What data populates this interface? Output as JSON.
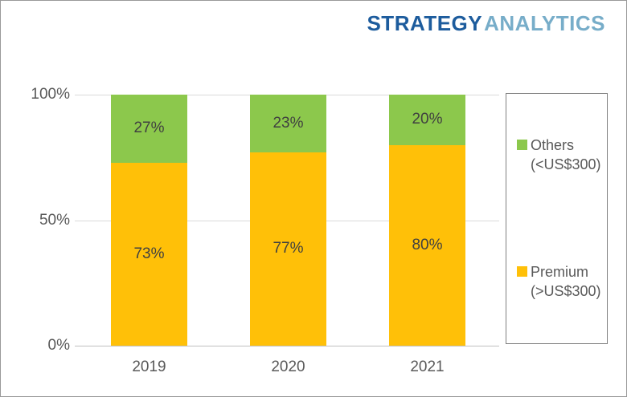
{
  "brand": {
    "word1": "STRATEGY",
    "word2": "ANALYTICS",
    "word1_color": "#1d5c9d",
    "word2_color": "#77adc9"
  },
  "chart_data": {
    "type": "bar",
    "stacked": true,
    "orientation": "vertical",
    "title": "",
    "xlabel": "",
    "ylabel": "",
    "categories": [
      "2019",
      "2020",
      "2021"
    ],
    "series": [
      {
        "name": "Premium (>US$300)",
        "color": "#ffc008",
        "values": [
          73,
          77,
          80
        ],
        "labels": [
          "73%",
          "77%",
          "80%"
        ]
      },
      {
        "name": "Others (<US$300)",
        "color": "#8cc84c",
        "values": [
          27,
          23,
          20
        ],
        "labels": [
          "27%",
          "23%",
          "20%"
        ]
      }
    ],
    "stack_order": "Premium bottom, Others top",
    "ylim": [
      0,
      100
    ],
    "yticks": [
      {
        "label": "100%",
        "value": 100
      },
      {
        "label": "50%",
        "value": 50
      },
      {
        "label": "0%",
        "value": 0
      }
    ],
    "grid": true,
    "legend_position": "right",
    "legend": [
      {
        "line1": "Others",
        "line2": "(<US$300)",
        "color": "#8cc84c"
      },
      {
        "line1": "Premium",
        "line2": "(>US$300)",
        "color": "#ffc008"
      }
    ],
    "label_colors": {
      "segment_label": "#404040",
      "axis_label": "#595959",
      "legend_label": "#595959"
    },
    "grid_color": "#d9d9d9",
    "axis_color": "#bfbfbf"
  }
}
